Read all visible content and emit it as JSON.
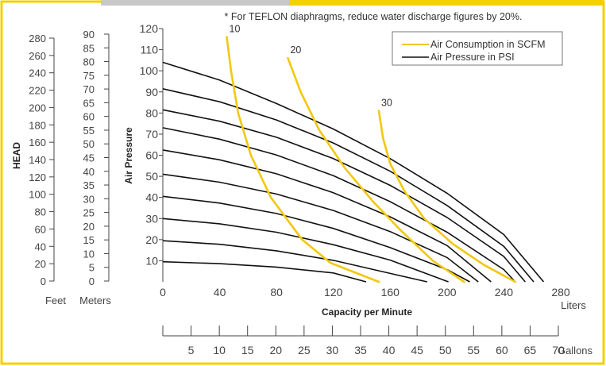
{
  "colors": {
    "frame_yellow": "#F5D000",
    "top_bar_gray": "#C8C8C8",
    "air_consumption": "#F2C811",
    "air_pressure": "#111111",
    "axis": "#444444",
    "text": "#333333"
  },
  "chart_data": {
    "type": "line",
    "note": "* For TEFLON diaphragms, reduce water discharge figures by 20%.",
    "xlabel": "Capacity per Minute",
    "ylabel": "Air Pressure",
    "head_label": "HEAD",
    "feet_label": "Feet",
    "meters_label": "Meters",
    "liters_label": "Liters",
    "gallons_label": "Gallons",
    "xlim": [
      0,
      280
    ],
    "ylim": [
      0,
      120
    ],
    "x_ticks": [
      0,
      40,
      80,
      120,
      160,
      200,
      240,
      280
    ],
    "y_ticks": [
      10,
      20,
      30,
      40,
      50,
      60,
      70,
      80,
      90,
      100,
      110,
      120
    ],
    "y_tick_labels": [
      "10",
      "20",
      "30",
      "40",
      "50",
      "60",
      "70",
      "80",
      "90",
      "100",
      "110",
      "120"
    ],
    "feet_ticks": [
      0,
      20,
      40,
      60,
      80,
      100,
      120,
      140,
      160,
      180,
      200,
      220,
      240,
      260,
      280
    ],
    "meter_ticks": [
      0,
      5,
      10,
      15,
      20,
      25,
      30,
      35,
      40,
      45,
      50,
      55,
      60,
      65,
      70,
      75,
      80,
      85,
      90
    ],
    "gallon_ticks": [
      5,
      10,
      15,
      20,
      25,
      30,
      35,
      40,
      45,
      50,
      55,
      60,
      65,
      70
    ],
    "legend": [
      "Air Consumption in SCFM",
      "Air Pressure in PSI"
    ],
    "legend_position": "top-right",
    "pressure_curves": [
      {
        "psi": 10,
        "points": [
          [
            0,
            9.5
          ],
          [
            40,
            8.6
          ],
          [
            80,
            7.0
          ],
          [
            120,
            4.2
          ],
          [
            143,
            0
          ]
        ]
      },
      {
        "psi": 20,
        "points": [
          [
            0,
            19.5
          ],
          [
            40,
            17.8
          ],
          [
            80,
            14.7
          ],
          [
            120,
            10.2
          ],
          [
            160,
            4.0
          ],
          [
            186,
            0
          ]
        ]
      },
      {
        "psi": 30,
        "points": [
          [
            0,
            30
          ],
          [
            40,
            27.5
          ],
          [
            80,
            23.5
          ],
          [
            120,
            17.6
          ],
          [
            160,
            10.3
          ],
          [
            201,
            0
          ]
        ]
      },
      {
        "psi": 40,
        "points": [
          [
            0,
            40.5
          ],
          [
            40,
            37.3
          ],
          [
            80,
            32.4
          ],
          [
            120,
            25.3
          ],
          [
            160,
            16.2
          ],
          [
            200,
            5.8
          ],
          [
            216,
            0
          ]
        ]
      },
      {
        "psi": 50,
        "points": [
          [
            0,
            51
          ],
          [
            40,
            47.2
          ],
          [
            80,
            41.6
          ],
          [
            120,
            33.8
          ],
          [
            160,
            23.8
          ],
          [
            200,
            11.5
          ],
          [
            222,
            0
          ]
        ]
      },
      {
        "psi": 60,
        "points": [
          [
            0,
            62.5
          ],
          [
            40,
            57.8
          ],
          [
            80,
            51.2
          ],
          [
            120,
            42.2
          ],
          [
            160,
            30.8
          ],
          [
            200,
            17.2
          ],
          [
            231,
            0
          ]
        ]
      },
      {
        "psi": 70,
        "points": [
          [
            0,
            73
          ],
          [
            40,
            67.6
          ],
          [
            80,
            60.1
          ],
          [
            120,
            50.3
          ],
          [
            160,
            38.0
          ],
          [
            200,
            23.5
          ],
          [
            240,
            5.8
          ],
          [
            248,
            0
          ]
        ]
      },
      {
        "psi": 80,
        "points": [
          [
            0,
            81.5
          ],
          [
            40,
            76.1
          ],
          [
            80,
            68.5
          ],
          [
            120,
            58.4
          ],
          [
            160,
            45.7
          ],
          [
            200,
            30.5
          ],
          [
            240,
            12.0
          ],
          [
            255,
            0
          ]
        ]
      },
      {
        "psi": 90,
        "points": [
          [
            0,
            91.5
          ],
          [
            40,
            85.3
          ],
          [
            80,
            76.7
          ],
          [
            120,
            65.8
          ],
          [
            160,
            52.4
          ],
          [
            200,
            36.2
          ],
          [
            240,
            16.8
          ],
          [
            261,
            0
          ]
        ]
      },
      {
        "psi": 100,
        "points": [
          [
            0,
            104
          ],
          [
            40,
            95.6
          ],
          [
            80,
            84.5
          ],
          [
            120,
            72.4
          ],
          [
            160,
            58.4
          ],
          [
            200,
            42.0
          ],
          [
            240,
            22.4
          ],
          [
            268,
            0
          ]
        ]
      }
    ],
    "consumption_curves": [
      {
        "scfm": 10,
        "label": "10",
        "points": [
          [
            45,
            116
          ],
          [
            48,
            100
          ],
          [
            53,
            80
          ],
          [
            62,
            60
          ],
          [
            76,
            40
          ],
          [
            98,
            20
          ],
          [
            118,
            9
          ],
          [
            152,
            0
          ]
        ]
      },
      {
        "scfm": 20,
        "label": "20",
        "points": [
          [
            88,
            106
          ],
          [
            97,
            90
          ],
          [
            110,
            72
          ],
          [
            128,
            54
          ],
          [
            148,
            38
          ],
          [
            168,
            24
          ],
          [
            190,
            10
          ],
          [
            212,
            0
          ]
        ]
      },
      {
        "scfm": 30,
        "label": "30",
        "points": [
          [
            152,
            81
          ],
          [
            155,
            68
          ],
          [
            160,
            56
          ],
          [
            170,
            43
          ],
          [
            184,
            30
          ],
          [
            204,
            18
          ],
          [
            226,
            8
          ],
          [
            248,
            0
          ]
        ]
      }
    ]
  }
}
